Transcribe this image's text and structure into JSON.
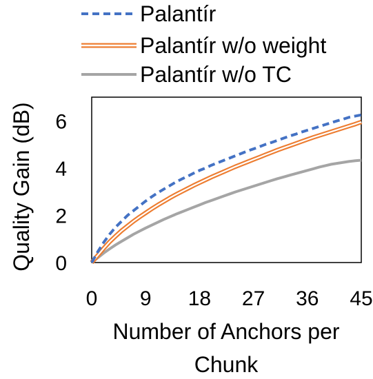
{
  "chart_data": {
    "type": "line",
    "xlabel_lines": [
      "Number of Anchors per",
      "Chunk"
    ],
    "ylabel": "Quality Gain (dB)",
    "xlim": [
      0,
      45
    ],
    "ylim": [
      0,
      7
    ],
    "xticks": [
      0,
      9,
      18,
      27,
      36,
      45
    ],
    "yticks": [
      0,
      2,
      4,
      6
    ],
    "grid": false,
    "legend_position": "top",
    "x": [
      0,
      1,
      2,
      3,
      4,
      5,
      6,
      7,
      8,
      9,
      10,
      11,
      12,
      13,
      14,
      15,
      16,
      17,
      18,
      19,
      20,
      21,
      22,
      23,
      24,
      25,
      26,
      27,
      28,
      29,
      30,
      31,
      32,
      33,
      34,
      35,
      36,
      37,
      38,
      39,
      40,
      41,
      42,
      43,
      44,
      45
    ],
    "series": [
      {
        "name": "Palantír",
        "color": "#4472C4",
        "style": "dashed",
        "values": [
          0,
          0.45,
          0.85,
          1.2,
          1.5,
          1.75,
          2.0,
          2.2,
          2.4,
          2.6,
          2.78,
          2.95,
          3.1,
          3.25,
          3.4,
          3.53,
          3.65,
          3.78,
          3.9,
          4.0,
          4.12,
          4.22,
          4.32,
          4.42,
          4.52,
          4.62,
          4.72,
          4.81,
          4.9,
          5.0,
          5.08,
          5.17,
          5.26,
          5.35,
          5.43,
          5.52,
          5.6,
          5.68,
          5.76,
          5.84,
          5.92,
          6.0,
          6.07,
          6.15,
          6.2,
          6.25
        ]
      },
      {
        "name": "Palantír w/o weight",
        "color": "#ED7D31",
        "style": "double",
        "values": [
          0,
          0.3,
          0.6,
          0.88,
          1.12,
          1.35,
          1.55,
          1.75,
          1.93,
          2.1,
          2.27,
          2.43,
          2.58,
          2.73,
          2.87,
          3.0,
          3.13,
          3.26,
          3.38,
          3.5,
          3.62,
          3.73,
          3.84,
          3.95,
          4.06,
          4.16,
          4.26,
          4.36,
          4.46,
          4.56,
          4.66,
          4.76,
          4.85,
          4.94,
          5.03,
          5.12,
          5.21,
          5.3,
          5.38,
          5.46,
          5.54,
          5.62,
          5.7,
          5.78,
          5.86,
          5.95
        ]
      },
      {
        "name": "Palantír w/o TC",
        "color": "#A5A5A5",
        "style": "solid",
        "values": [
          0,
          0.2,
          0.4,
          0.58,
          0.75,
          0.9,
          1.05,
          1.2,
          1.33,
          1.46,
          1.58,
          1.7,
          1.82,
          1.93,
          2.04,
          2.14,
          2.24,
          2.34,
          2.44,
          2.54,
          2.63,
          2.72,
          2.81,
          2.9,
          2.99,
          3.07,
          3.15,
          3.23,
          3.31,
          3.39,
          3.47,
          3.55,
          3.62,
          3.69,
          3.76,
          3.83,
          3.9,
          3.97,
          4.04,
          4.1,
          4.16,
          4.2,
          4.24,
          4.28,
          4.31,
          4.33
        ]
      }
    ]
  }
}
